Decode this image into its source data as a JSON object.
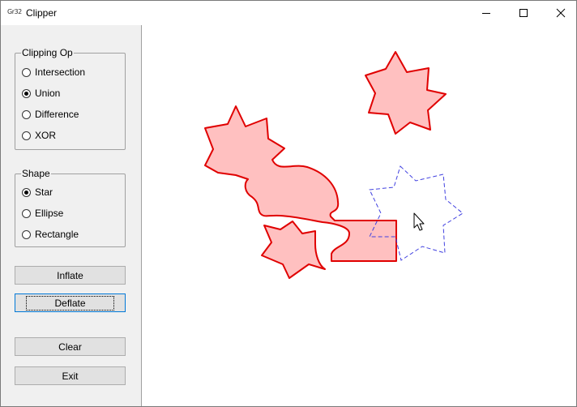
{
  "window": {
    "title": "Clipper",
    "app_icon_text": "Gr32"
  },
  "clipping_group": {
    "label": "Clipping Op",
    "options": [
      {
        "label": "Intersection",
        "checked": false
      },
      {
        "label": "Union",
        "checked": true
      },
      {
        "label": "Difference",
        "checked": false
      },
      {
        "label": "XOR",
        "checked": false
      }
    ]
  },
  "shape_group": {
    "label": "Shape",
    "options": [
      {
        "label": "Star",
        "checked": true
      },
      {
        "label": "Ellipse",
        "checked": false
      },
      {
        "label": "Rectangle",
        "checked": false
      }
    ]
  },
  "buttons": {
    "inflate": "Inflate",
    "deflate": "Deflate",
    "clear": "Clear",
    "exit": "Exit"
  },
  "colors": {
    "result_fill": "#ffc0c0",
    "result_stroke": "#e00000",
    "cursor_shape_stroke": "#4040e0"
  }
}
